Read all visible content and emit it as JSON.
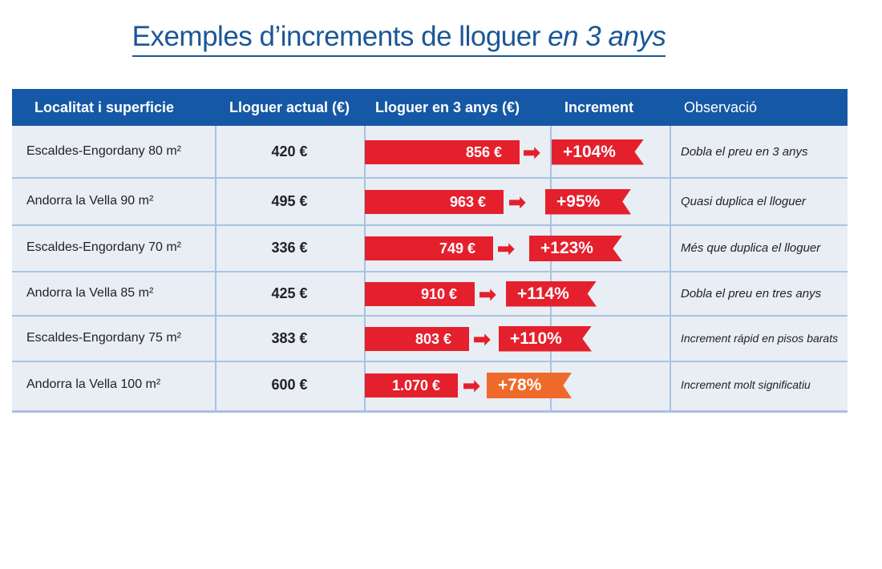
{
  "title": {
    "main": "Exemples d’increments de lloguer",
    "italic": "en 3 anys"
  },
  "headers": [
    "Localitat i superficie",
    "Lloguer actual (€)",
    "Lloguer en 3 anys (€)",
    "Increment",
    "Observació"
  ],
  "rows": [
    {
      "location": "Escaldes-Engordany 80 m²",
      "current": "420 €",
      "future": "856 €",
      "increment": "+104%",
      "note": "Dobla el preu en 3 anys",
      "color": "#e4202d"
    },
    {
      "location": "Andorra la Vella 90 m²",
      "current": "495 €",
      "future": "963 €",
      "increment": "+95%",
      "note": "Quasi duplica el lloguer",
      "color": "#e4202d"
    },
    {
      "location": "Escaldes-Engordany 70 m²",
      "current": "336 €",
      "future": "749 €",
      "increment": "+123%",
      "note": "Més que duplica el lloguer",
      "color": "#e4202d"
    },
    {
      "location": "Andorra la Vella 85 m²",
      "current": "425 €",
      "future": "910 €",
      "increment": "+114%",
      "note": "Dobla el preu en tres anys",
      "color": "#e4202d"
    },
    {
      "location": "Escaldes-Engordany 75 m²",
      "current": "383 €",
      "future": "803 €",
      "increment": "+110%",
      "note": "Increment rápid en pisos barats",
      "color": "#e4202d"
    },
    {
      "location": "Andorra la Vella 100 m²",
      "current": "600 €",
      "future": "1.070 €",
      "increment": "+78%",
      "note": "Increment molt significatiu",
      "color": "#ef6a2a"
    }
  ]
}
